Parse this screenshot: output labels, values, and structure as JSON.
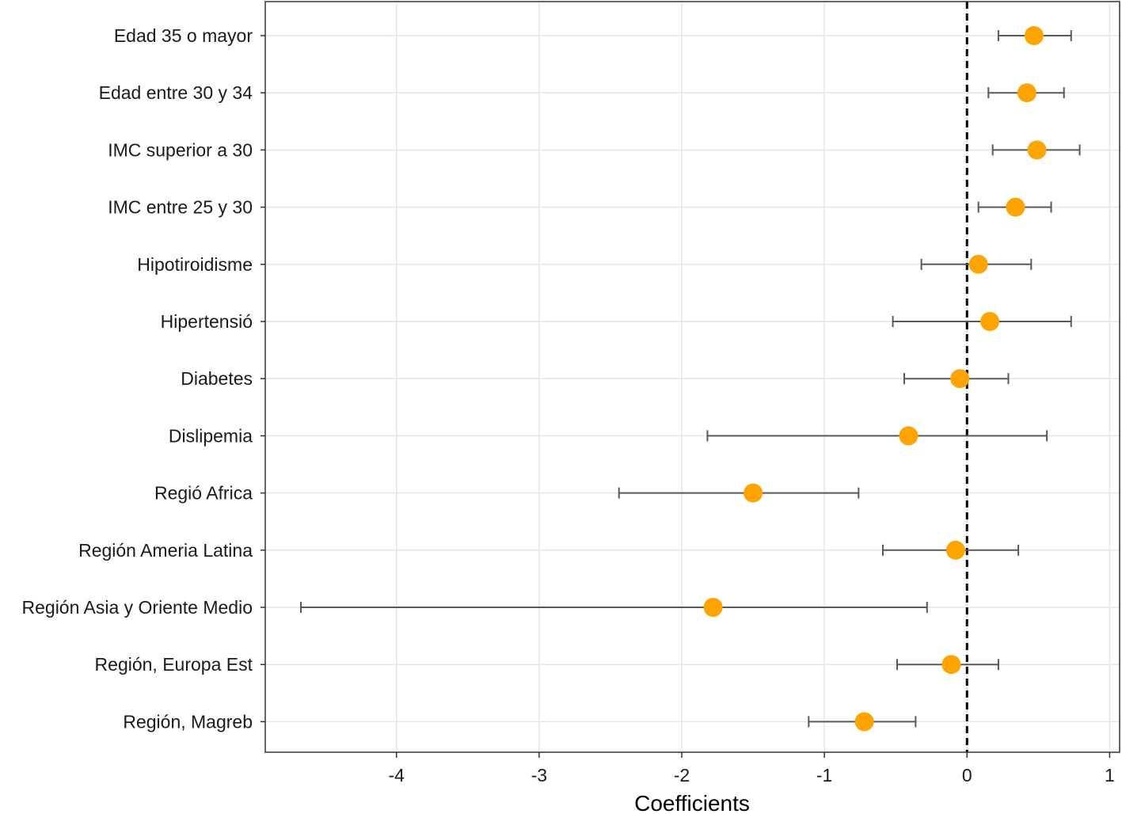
{
  "chart_data": {
    "type": "forest",
    "xlabel": "Coefficients",
    "ylabel": "",
    "xlim": [
      -4.92,
      1.07
    ],
    "xticks": [
      -4,
      -3,
      -2,
      -1,
      0,
      1
    ],
    "xtick_labels": [
      "-4",
      "-3",
      "-2",
      "-1",
      "0",
      "1"
    ],
    "reference_line": 0,
    "grid": true,
    "point_color": "#ffa300",
    "errorbar_color": "#595959",
    "rows": [
      {
        "label": "Edad 35 o mayor",
        "estimate": 0.47,
        "low": 0.22,
        "high": 0.73
      },
      {
        "label": "Edad entre 30 y 34",
        "estimate": 0.42,
        "low": 0.15,
        "high": 0.68
      },
      {
        "label": "IMC superior a 30",
        "estimate": 0.49,
        "low": 0.18,
        "high": 0.79
      },
      {
        "label": "IMC entre 25 y 30",
        "estimate": 0.34,
        "low": 0.08,
        "high": 0.59
      },
      {
        "label": "Hipotiroidisme",
        "estimate": 0.08,
        "low": -0.32,
        "high": 0.45
      },
      {
        "label": "Hipertensió",
        "estimate": 0.16,
        "low": -0.52,
        "high": 0.73
      },
      {
        "label": "Diabetes",
        "estimate": -0.05,
        "low": -0.44,
        "high": 0.29
      },
      {
        "label": "Dislipemia",
        "estimate": -0.41,
        "low": -1.82,
        "high": 0.56
      },
      {
        "label": "Regió Africa",
        "estimate": -1.5,
        "low": -2.44,
        "high": -0.76
      },
      {
        "label": "Región Ameria Latina",
        "estimate": -0.08,
        "low": -0.59,
        "high": 0.36
      },
      {
        "label": "Región Asia y Oriente Medio",
        "estimate": -1.78,
        "low": -4.67,
        "high": -0.28
      },
      {
        "label": "Región, Europa Est",
        "estimate": -0.11,
        "low": -0.49,
        "high": 0.22
      },
      {
        "label": "Región, Magreb",
        "estimate": -0.72,
        "low": -1.11,
        "high": -0.36
      }
    ]
  }
}
